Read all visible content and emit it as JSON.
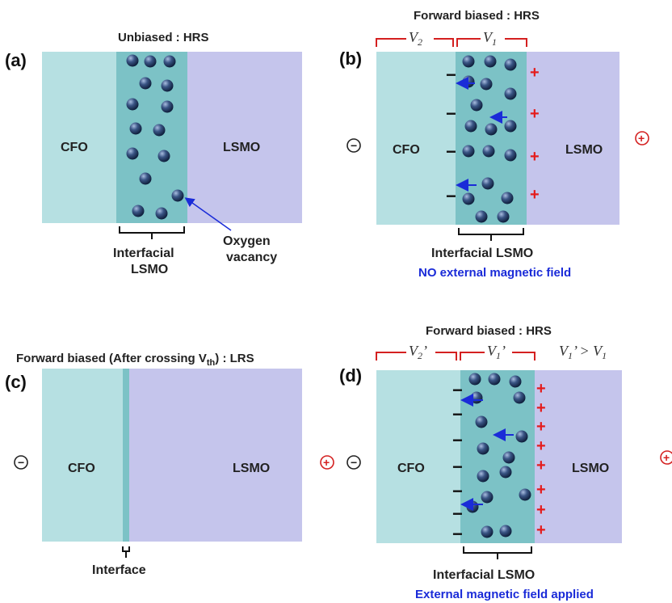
{
  "panels": {
    "a": {
      "letter": "(a)",
      "title": "Unbiased : HRS",
      "cfo": "CFO",
      "lsmo": "LSMO",
      "interfacial_line1": "Interfacial",
      "interfacial_line2": "LSMO",
      "oxygen_line1": "Oxygen",
      "oxygen_line2": "vacancy"
    },
    "b": {
      "letter": "(b)",
      "title": "Forward biased : HRS",
      "v2": "V",
      "v2_sub": "2",
      "v1": "V",
      "v1_sub": "1",
      "cfo": "CFO",
      "lsmo": "LSMO",
      "interfacial": "Interfacial LSMO",
      "field_note": "NO external magnetic field",
      "minus_terminal": "−",
      "plus_terminal": "+",
      "plus_charge": "+",
      "minus_charge": "−"
    },
    "c": {
      "letter": "(c)",
      "title_main": "Forward biased (After crossing V",
      "title_sub": "th",
      "title_end": ") : LRS",
      "cfo": "CFO",
      "lsmo": "LSMO",
      "interface": "Interface",
      "minus_terminal": "−",
      "plus_terminal": "+"
    },
    "d": {
      "letter": "(d)",
      "title": "Forward biased : HRS",
      "v2": "V",
      "v2_sub": "2",
      "v2_prime": "’",
      "v1": "V",
      "v1_sub": "1",
      "v1_prime": "’",
      "relation_a": "V",
      "relation_a_sub": "1",
      "relation_mid": "’ > V",
      "relation_b_sub": "1",
      "cfo": "CFO",
      "lsmo": "LSMO",
      "interfacial": "Interfacial LSMO",
      "field_note": "External magnetic field applied",
      "minus_terminal": "−",
      "plus_terminal": "+",
      "plus_charge": "+",
      "minus_charge": "−"
    }
  },
  "colors": {
    "cfo": "#b6e0e2",
    "interfacial": "#7cc2c6",
    "lsmo": "#c5c5ec",
    "vacancy_dark": "#152a4e",
    "vacancy_light": "#8fa6d2",
    "arrow_blue": "#1a2bd8",
    "plus_red": "#e41c1c",
    "bracket_red": "#d42020",
    "text_blue": "#1a2bd8"
  }
}
